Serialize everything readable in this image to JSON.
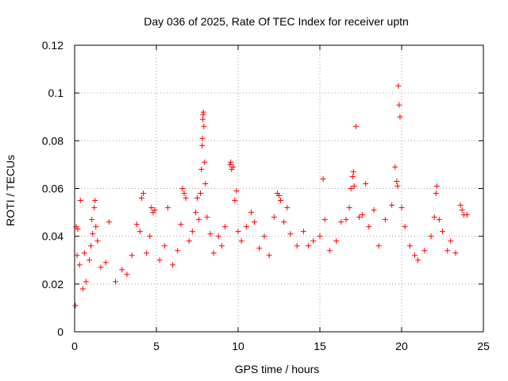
{
  "chart_data": {
    "type": "scatter",
    "title": "Day 036 of 2025, Rate Of TEC Index for receiver uptn",
    "xlabel": "GPS time / hours",
    "ylabel": "ROTI / TECUs",
    "xlim": [
      0,
      25
    ],
    "ylim": [
      0,
      0.12
    ],
    "x_ticks": [
      0,
      5,
      10,
      15,
      20,
      25
    ],
    "x_tick_labels": [
      "0",
      "5",
      "10",
      "15",
      "20",
      "25"
    ],
    "y_ticks": [
      0,
      0.02,
      0.04,
      0.06,
      0.08,
      0.1,
      0.12
    ],
    "y_tick_labels": [
      "0",
      "0.02",
      "0.04",
      "0.06",
      "0.08",
      "0.1",
      "0.12"
    ],
    "grid": true,
    "marker": "+",
    "marker_color": "#ff0000",
    "series": [
      {
        "name": "ROTI",
        "points": [
          [
            0.05,
            0.011
          ],
          [
            0.1,
            0.044
          ],
          [
            0.15,
            0.032
          ],
          [
            0.2,
            0.043
          ],
          [
            0.3,
            0.028
          ],
          [
            0.35,
            0.055
          ],
          [
            0.5,
            0.018
          ],
          [
            0.6,
            0.033
          ],
          [
            0.7,
            0.021
          ],
          [
            0.9,
            0.03
          ],
          [
            1.0,
            0.036
          ],
          [
            1.05,
            0.047
          ],
          [
            1.1,
            0.041
          ],
          [
            1.2,
            0.052
          ],
          [
            1.25,
            0.055
          ],
          [
            1.3,
            0.044
          ],
          [
            1.4,
            0.038
          ],
          [
            1.6,
            0.027
          ],
          [
            1.9,
            0.029
          ],
          [
            2.1,
            0.046
          ],
          [
            2.5,
            0.021
          ],
          [
            2.9,
            0.026
          ],
          [
            3.2,
            0.024
          ],
          [
            3.5,
            0.032
          ],
          [
            3.8,
            0.045
          ],
          [
            4.0,
            0.042
          ],
          [
            4.1,
            0.056
          ],
          [
            4.2,
            0.058
          ],
          [
            4.4,
            0.033
          ],
          [
            4.6,
            0.04
          ],
          [
            4.7,
            0.052
          ],
          [
            4.8,
            0.05
          ],
          [
            4.9,
            0.051
          ],
          [
            5.2,
            0.03
          ],
          [
            5.5,
            0.036
          ],
          [
            5.7,
            0.052
          ],
          [
            6.0,
            0.028
          ],
          [
            6.3,
            0.034
          ],
          [
            6.5,
            0.045
          ],
          [
            6.6,
            0.06
          ],
          [
            6.7,
            0.058
          ],
          [
            6.8,
            0.056
          ],
          [
            7.0,
            0.038
          ],
          [
            7.2,
            0.042
          ],
          [
            7.4,
            0.05
          ],
          [
            7.5,
            0.056
          ],
          [
            7.6,
            0.047
          ],
          [
            7.7,
            0.058
          ],
          [
            7.75,
            0.068
          ],
          [
            7.8,
            0.078
          ],
          [
            7.82,
            0.081
          ],
          [
            7.84,
            0.089
          ],
          [
            7.86,
            0.091
          ],
          [
            7.88,
            0.092
          ],
          [
            7.9,
            0.086
          ],
          [
            7.95,
            0.071
          ],
          [
            8.0,
            0.062
          ],
          [
            8.1,
            0.048
          ],
          [
            8.3,
            0.041
          ],
          [
            8.5,
            0.033
          ],
          [
            8.8,
            0.04
          ],
          [
            9.0,
            0.036
          ],
          [
            9.2,
            0.044
          ],
          [
            9.5,
            0.07
          ],
          [
            9.55,
            0.071
          ],
          [
            9.6,
            0.068
          ],
          [
            9.7,
            0.069
          ],
          [
            9.8,
            0.055
          ],
          [
            9.9,
            0.059
          ],
          [
            10.0,
            0.042
          ],
          [
            10.2,
            0.038
          ],
          [
            10.5,
            0.044
          ],
          [
            10.8,
            0.05
          ],
          [
            11.0,
            0.046
          ],
          [
            11.3,
            0.035
          ],
          [
            11.6,
            0.04
          ],
          [
            11.9,
            0.032
          ],
          [
            12.2,
            0.048
          ],
          [
            12.4,
            0.058
          ],
          [
            12.5,
            0.057
          ],
          [
            12.6,
            0.055
          ],
          [
            12.8,
            0.046
          ],
          [
            13.0,
            0.052
          ],
          [
            13.2,
            0.041
          ],
          [
            13.6,
            0.036
          ],
          [
            14.0,
            0.042
          ],
          [
            14.3,
            0.036
          ],
          [
            14.6,
            0.038
          ],
          [
            15.0,
            0.04
          ],
          [
            15.2,
            0.064
          ],
          [
            15.3,
            0.047
          ],
          [
            15.6,
            0.034
          ],
          [
            16.0,
            0.038
          ],
          [
            16.3,
            0.046
          ],
          [
            16.6,
            0.047
          ],
          [
            16.8,
            0.052
          ],
          [
            16.9,
            0.06
          ],
          [
            17.0,
            0.065
          ],
          [
            17.05,
            0.067
          ],
          [
            17.1,
            0.061
          ],
          [
            17.2,
            0.086
          ],
          [
            17.4,
            0.048
          ],
          [
            17.6,
            0.049
          ],
          [
            17.8,
            0.062
          ],
          [
            18.0,
            0.044
          ],
          [
            18.3,
            0.051
          ],
          [
            18.6,
            0.036
          ],
          [
            19.0,
            0.047
          ],
          [
            19.4,
            0.053
          ],
          [
            19.6,
            0.069
          ],
          [
            19.7,
            0.063
          ],
          [
            19.75,
            0.061
          ],
          [
            19.8,
            0.103
          ],
          [
            19.85,
            0.095
          ],
          [
            19.9,
            0.09
          ],
          [
            20.0,
            0.052
          ],
          [
            20.2,
            0.044
          ],
          [
            20.5,
            0.036
          ],
          [
            20.8,
            0.032
          ],
          [
            21.0,
            0.03
          ],
          [
            21.4,
            0.034
          ],
          [
            21.8,
            0.04
          ],
          [
            22.0,
            0.048
          ],
          [
            22.1,
            0.058
          ],
          [
            22.15,
            0.061
          ],
          [
            22.3,
            0.047
          ],
          [
            22.5,
            0.042
          ],
          [
            22.8,
            0.034
          ],
          [
            23.0,
            0.038
          ],
          [
            23.3,
            0.033
          ],
          [
            23.6,
            0.053
          ],
          [
            23.7,
            0.051
          ],
          [
            23.8,
            0.049
          ],
          [
            24.0,
            0.049
          ]
        ]
      }
    ]
  }
}
